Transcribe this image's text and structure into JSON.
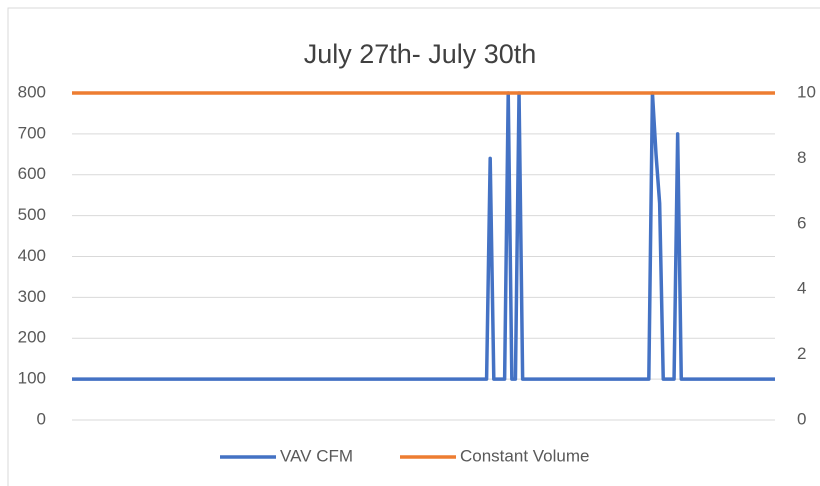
{
  "chart_data": {
    "type": "line",
    "title": "July 27th- July 30th",
    "ylim": [
      0,
      800
    ],
    "yticks": [
      0,
      100,
      200,
      300,
      400,
      500,
      600,
      700,
      800
    ],
    "y2lim": [
      0,
      10
    ],
    "y2ticks": [
      0,
      2,
      4,
      6,
      8,
      10
    ],
    "grid": true,
    "legend": "bottom",
    "series": [
      {
        "name": "VAV CFM",
        "color": "#4472c4",
        "values": [
          100,
          100,
          100,
          100,
          100,
          100,
          100,
          100,
          100,
          100,
          100,
          100,
          100,
          100,
          100,
          100,
          100,
          100,
          100,
          100,
          100,
          100,
          100,
          100,
          100,
          100,
          100,
          100,
          100,
          100,
          100,
          100,
          100,
          100,
          100,
          100,
          100,
          100,
          100,
          100,
          100,
          100,
          100,
          100,
          100,
          100,
          100,
          100,
          100,
          100,
          100,
          100,
          100,
          100,
          100,
          100,
          100,
          100,
          100,
          100,
          100,
          100,
          100,
          100,
          100,
          100,
          100,
          100,
          100,
          100,
          100,
          100,
          100,
          100,
          100,
          100,
          100,
          100,
          100,
          100,
          100,
          100,
          100,
          100,
          100,
          100,
          100,
          100,
          100,
          100,
          100,
          100,
          100,
          100,
          100,
          100,
          100,
          100,
          100,
          100,
          100,
          100,
          100,
          100,
          100,
          100,
          100,
          100,
          100,
          100,
          100,
          100,
          100,
          100,
          100,
          100,
          640,
          100,
          100,
          100,
          100,
          800,
          100,
          100,
          800,
          100,
          100,
          100,
          100,
          100,
          100,
          100,
          100,
          100,
          100,
          100,
          100,
          100,
          100,
          100,
          100,
          100,
          100,
          100,
          100,
          100,
          100,
          100,
          100,
          100,
          100,
          100,
          100,
          100,
          100,
          100,
          100,
          100,
          100,
          100,
          100,
          800,
          650,
          530,
          100,
          100,
          100,
          100,
          700,
          100,
          100,
          100,
          100,
          100,
          100,
          100,
          100,
          100,
          100,
          100,
          100,
          100,
          100,
          100,
          100,
          100,
          100,
          100,
          100,
          100,
          100,
          100,
          100,
          100,
          100,
          100
        ]
      },
      {
        "name": "Constant Volume",
        "color": "#ed7d31",
        "values": [
          800,
          800,
          800,
          800,
          800,
          800,
          800,
          800,
          800,
          800,
          800,
          800,
          800,
          800,
          800,
          800,
          800,
          800,
          800,
          800,
          800,
          800,
          800,
          800,
          800,
          800,
          800,
          800,
          800,
          800,
          800,
          800,
          800,
          800,
          800,
          800,
          800,
          800,
          800,
          800,
          800,
          800,
          800,
          800,
          800,
          800,
          800,
          800,
          800,
          800,
          800,
          800,
          800,
          800,
          800,
          800,
          800,
          800,
          800,
          800,
          800,
          800,
          800,
          800,
          800,
          800,
          800,
          800,
          800,
          800,
          800,
          800,
          800,
          800,
          800,
          800,
          800,
          800,
          800,
          800,
          800,
          800,
          800,
          800,
          800,
          800,
          800,
          800,
          800,
          800,
          800,
          800,
          800,
          800,
          800,
          800,
          800,
          800,
          800,
          800,
          800,
          800,
          800,
          800,
          800,
          800,
          800,
          800,
          800,
          800,
          800,
          800,
          800,
          800,
          800,
          800,
          800,
          800,
          800,
          800,
          800,
          800,
          800,
          800,
          800,
          800,
          800,
          800,
          800,
          800,
          800,
          800,
          800,
          800,
          800,
          800,
          800,
          800,
          800,
          800,
          800,
          800,
          800,
          800,
          800,
          800,
          800,
          800,
          800,
          800,
          800,
          800,
          800,
          800,
          800,
          800,
          800,
          800,
          800,
          800,
          800,
          800,
          800,
          800,
          800,
          800,
          800,
          800,
          800,
          800,
          800,
          800,
          800,
          800,
          800,
          800,
          800,
          800,
          800,
          800,
          800,
          800,
          800,
          800,
          800,
          800,
          800,
          800,
          800,
          800,
          800,
          800,
          800,
          800,
          800,
          800,
          800,
          800,
          800,
          800
        ]
      }
    ]
  }
}
